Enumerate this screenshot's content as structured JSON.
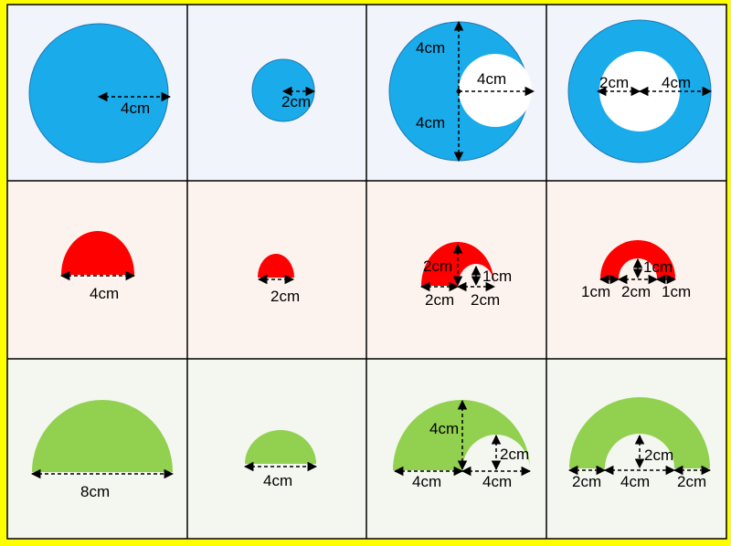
{
  "colors": {
    "background": "#ffff00",
    "row1_bg": "#f1f5fb",
    "row2_bg": "#fdf3ee",
    "row3_bg": "#f4f7ef",
    "circle": "#1aabea",
    "circle_edge": "#1f77b4",
    "semicircle_red": "#ff0000",
    "semicircle_green": "#92d050",
    "grid_line": "#000000"
  },
  "labels": {
    "r1c1": [
      "4cm"
    ],
    "r1c2": [
      "2cm"
    ],
    "r1c3": [
      "4cm",
      "4cm",
      "4cm"
    ],
    "r1c4": [
      "2cm",
      "4cm"
    ],
    "r2c1": [
      "4cm"
    ],
    "r2c2": [
      "2cm"
    ],
    "r2c3": [
      "2cm",
      "1cm",
      "2cm",
      "2cm"
    ],
    "r2c4": [
      "1cm",
      "1cm",
      "2cm",
      "1cm"
    ],
    "r3c1": [
      "8cm"
    ],
    "r3c2": [
      "4cm"
    ],
    "r3c3": [
      "4cm",
      "2cm",
      "4cm",
      "4cm"
    ],
    "r3c4": [
      "2cm",
      "2cm",
      "4cm",
      "2cm"
    ]
  }
}
